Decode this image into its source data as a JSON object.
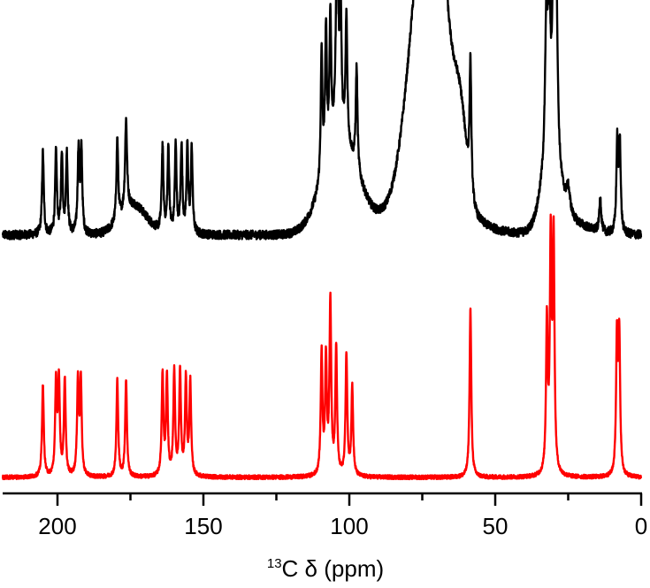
{
  "chart_data": {
    "type": "line",
    "x_axis": {
      "title_sup": "13",
      "title_rest": "C δ (ppm)",
      "range": [
        220,
        0
      ],
      "reversed": true,
      "major_ticks": [
        200,
        150,
        100,
        50,
        0
      ],
      "minor_ticks": [
        225,
        175,
        125,
        75,
        25
      ],
      "tick_labels": [
        "200",
        "150",
        "100",
        "50",
        "0"
      ]
    },
    "y_axis_visible": false,
    "grid": false,
    "legend": "none",
    "series": [
      {
        "color": "#000000",
        "position": "top",
        "baseline_noise": 0.018,
        "peaks": [
          [
            205.0,
            0.34,
            0.35
          ],
          [
            200.5,
            0.34,
            0.35
          ],
          [
            198.5,
            0.33,
            0.35
          ],
          [
            196.8,
            0.33,
            0.35
          ],
          [
            192.8,
            0.34,
            0.35
          ],
          [
            191.8,
            0.34,
            0.35
          ],
          [
            179.5,
            0.34,
            0.35
          ],
          [
            176.5,
            0.37,
            0.4
          ],
          [
            164.0,
            0.35,
            0.35
          ],
          [
            162.0,
            0.35,
            0.35
          ],
          [
            159.5,
            0.36,
            0.35
          ],
          [
            157.5,
            0.36,
            0.35
          ],
          [
            155.5,
            0.35,
            0.35
          ],
          [
            154.0,
            0.35,
            0.35
          ],
          [
            109.5,
            0.52,
            0.35
          ],
          [
            108.0,
            0.55,
            0.35
          ],
          [
            106.5,
            0.55,
            0.35
          ],
          [
            104.2,
            0.8,
            0.5
          ],
          [
            103.0,
            0.55,
            0.35
          ],
          [
            101.0,
            0.52,
            0.35
          ],
          [
            97.5,
            0.42,
            0.35
          ],
          [
            58.5,
            0.54,
            0.35
          ],
          [
            32.5,
            0.55,
            0.5
          ],
          [
            31.5,
            0.6,
            0.5
          ],
          [
            30.0,
            0.78,
            0.5
          ],
          [
            29.0,
            0.6,
            0.5
          ],
          [
            25.0,
            0.1,
            0.8
          ],
          [
            14.0,
            0.14,
            0.4
          ],
          [
            8.2,
            0.37,
            0.35
          ],
          [
            7.3,
            0.37,
            0.35
          ]
        ],
        "broad_features": [
          [
            174.0,
            0.12,
            4.5
          ],
          [
            103.0,
            0.38,
            6.0
          ],
          [
            75.0,
            0.83,
            5.0
          ],
          [
            70.0,
            0.85,
            4.0
          ],
          [
            72.5,
            0.2,
            11.0
          ],
          [
            62.0,
            0.34,
            2.2
          ],
          [
            31.0,
            0.28,
            3.0
          ],
          [
            25.0,
            0.05,
            6.0
          ]
        ]
      },
      {
        "color": "#ff0000",
        "position": "bottom",
        "baseline_noise": 0.008,
        "peaks": [
          [
            205.0,
            0.37,
            0.35
          ],
          [
            200.5,
            0.38,
            0.35
          ],
          [
            199.5,
            0.38,
            0.35
          ],
          [
            197.5,
            0.39,
            0.35
          ],
          [
            193.0,
            0.38,
            0.35
          ],
          [
            192.0,
            0.38,
            0.35
          ],
          [
            179.5,
            0.39,
            0.35
          ],
          [
            176.5,
            0.39,
            0.35
          ],
          [
            164.0,
            0.41,
            0.35
          ],
          [
            162.5,
            0.4,
            0.35
          ],
          [
            160.0,
            0.42,
            0.35
          ],
          [
            158.0,
            0.42,
            0.35
          ],
          [
            156.0,
            0.39,
            0.35
          ],
          [
            154.5,
            0.38,
            0.35
          ],
          [
            109.5,
            0.49,
            0.35
          ],
          [
            108.0,
            0.46,
            0.35
          ],
          [
            106.5,
            0.7,
            0.35
          ],
          [
            104.5,
            0.51,
            0.35
          ],
          [
            101.0,
            0.49,
            0.35
          ],
          [
            99.0,
            0.36,
            0.35
          ],
          [
            58.5,
            0.68,
            0.35
          ],
          [
            32.3,
            0.61,
            0.35
          ],
          [
            31.0,
            0.91,
            0.35
          ],
          [
            30.0,
            0.95,
            0.35
          ],
          [
            8.3,
            0.55,
            0.35
          ],
          [
            7.5,
            0.55,
            0.35
          ]
        ],
        "broad_features": []
      }
    ]
  }
}
